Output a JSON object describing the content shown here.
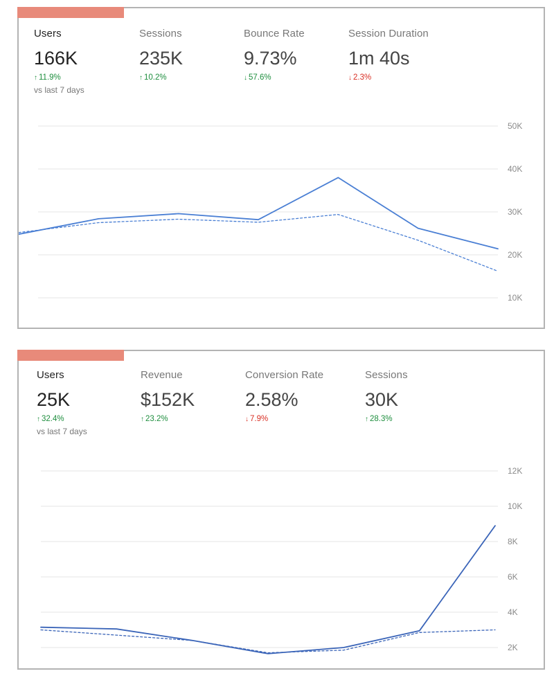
{
  "cards": [
    {
      "metrics": [
        {
          "label": "Users",
          "value": "166K",
          "delta": "11.9%",
          "direction": "up",
          "tone": "good",
          "sub": "vs last 7 days",
          "active": true
        },
        {
          "label": "Sessions",
          "value": "235K",
          "delta": "10.2%",
          "direction": "up",
          "tone": "good"
        },
        {
          "label": "Bounce Rate",
          "value": "9.73%",
          "delta": "57.6%",
          "direction": "down",
          "tone": "good"
        },
        {
          "label": "Session Duration",
          "value": "1m 40s",
          "delta": "2.3%",
          "direction": "down",
          "tone": "bad"
        }
      ]
    },
    {
      "metrics": [
        {
          "label": "Users",
          "value": "25K",
          "delta": "32.4%",
          "direction": "up",
          "tone": "good",
          "sub": "vs last 7 days",
          "active": true
        },
        {
          "label": "Revenue",
          "value": "$152K",
          "delta": "23.2%",
          "direction": "up",
          "tone": "good"
        },
        {
          "label": "Conversion Rate",
          "value": "2.58%",
          "delta": "7.9%",
          "direction": "down",
          "tone": "bad"
        },
        {
          "label": "Sessions",
          "value": "30K",
          "delta": "28.3%",
          "direction": "up",
          "tone": "good"
        }
      ]
    }
  ],
  "chart_data": [
    {
      "type": "line",
      "y_tick_labels": [
        "50K",
        "40K",
        "30K",
        "20K",
        "10K"
      ],
      "y_ticks": [
        50000,
        40000,
        30000,
        20000,
        10000
      ],
      "ylim": [
        10000,
        50000
      ],
      "grid": true,
      "series": [
        {
          "style": "solid",
          "values": [
            24800,
            28400,
            29600,
            28200,
            38000,
            26200,
            21400
          ]
        },
        {
          "style": "dashed",
          "values": [
            25200,
            27500,
            28300,
            27600,
            29400,
            23400,
            16200
          ]
        }
      ],
      "colors": {
        "line": "#4a7fd4",
        "grid": "#e6e6e6"
      }
    },
    {
      "type": "line",
      "y_tick_labels": [
        "12K",
        "10K",
        "8K",
        "6K",
        "4K",
        "2K"
      ],
      "y_ticks": [
        12000,
        10000,
        8000,
        6000,
        4000,
        2000
      ],
      "ylim": [
        0,
        12000
      ],
      "grid": true,
      "series": [
        {
          "style": "solid",
          "values": [
            3150,
            3050,
            2400,
            1650,
            2000,
            2950,
            8900
          ]
        },
        {
          "style": "dashed",
          "values": [
            3000,
            2700,
            2400,
            1700,
            1850,
            2850,
            3000
          ]
        }
      ],
      "colors": {
        "line": "#3a64b8",
        "grid": "#e6e6e6"
      }
    }
  ]
}
